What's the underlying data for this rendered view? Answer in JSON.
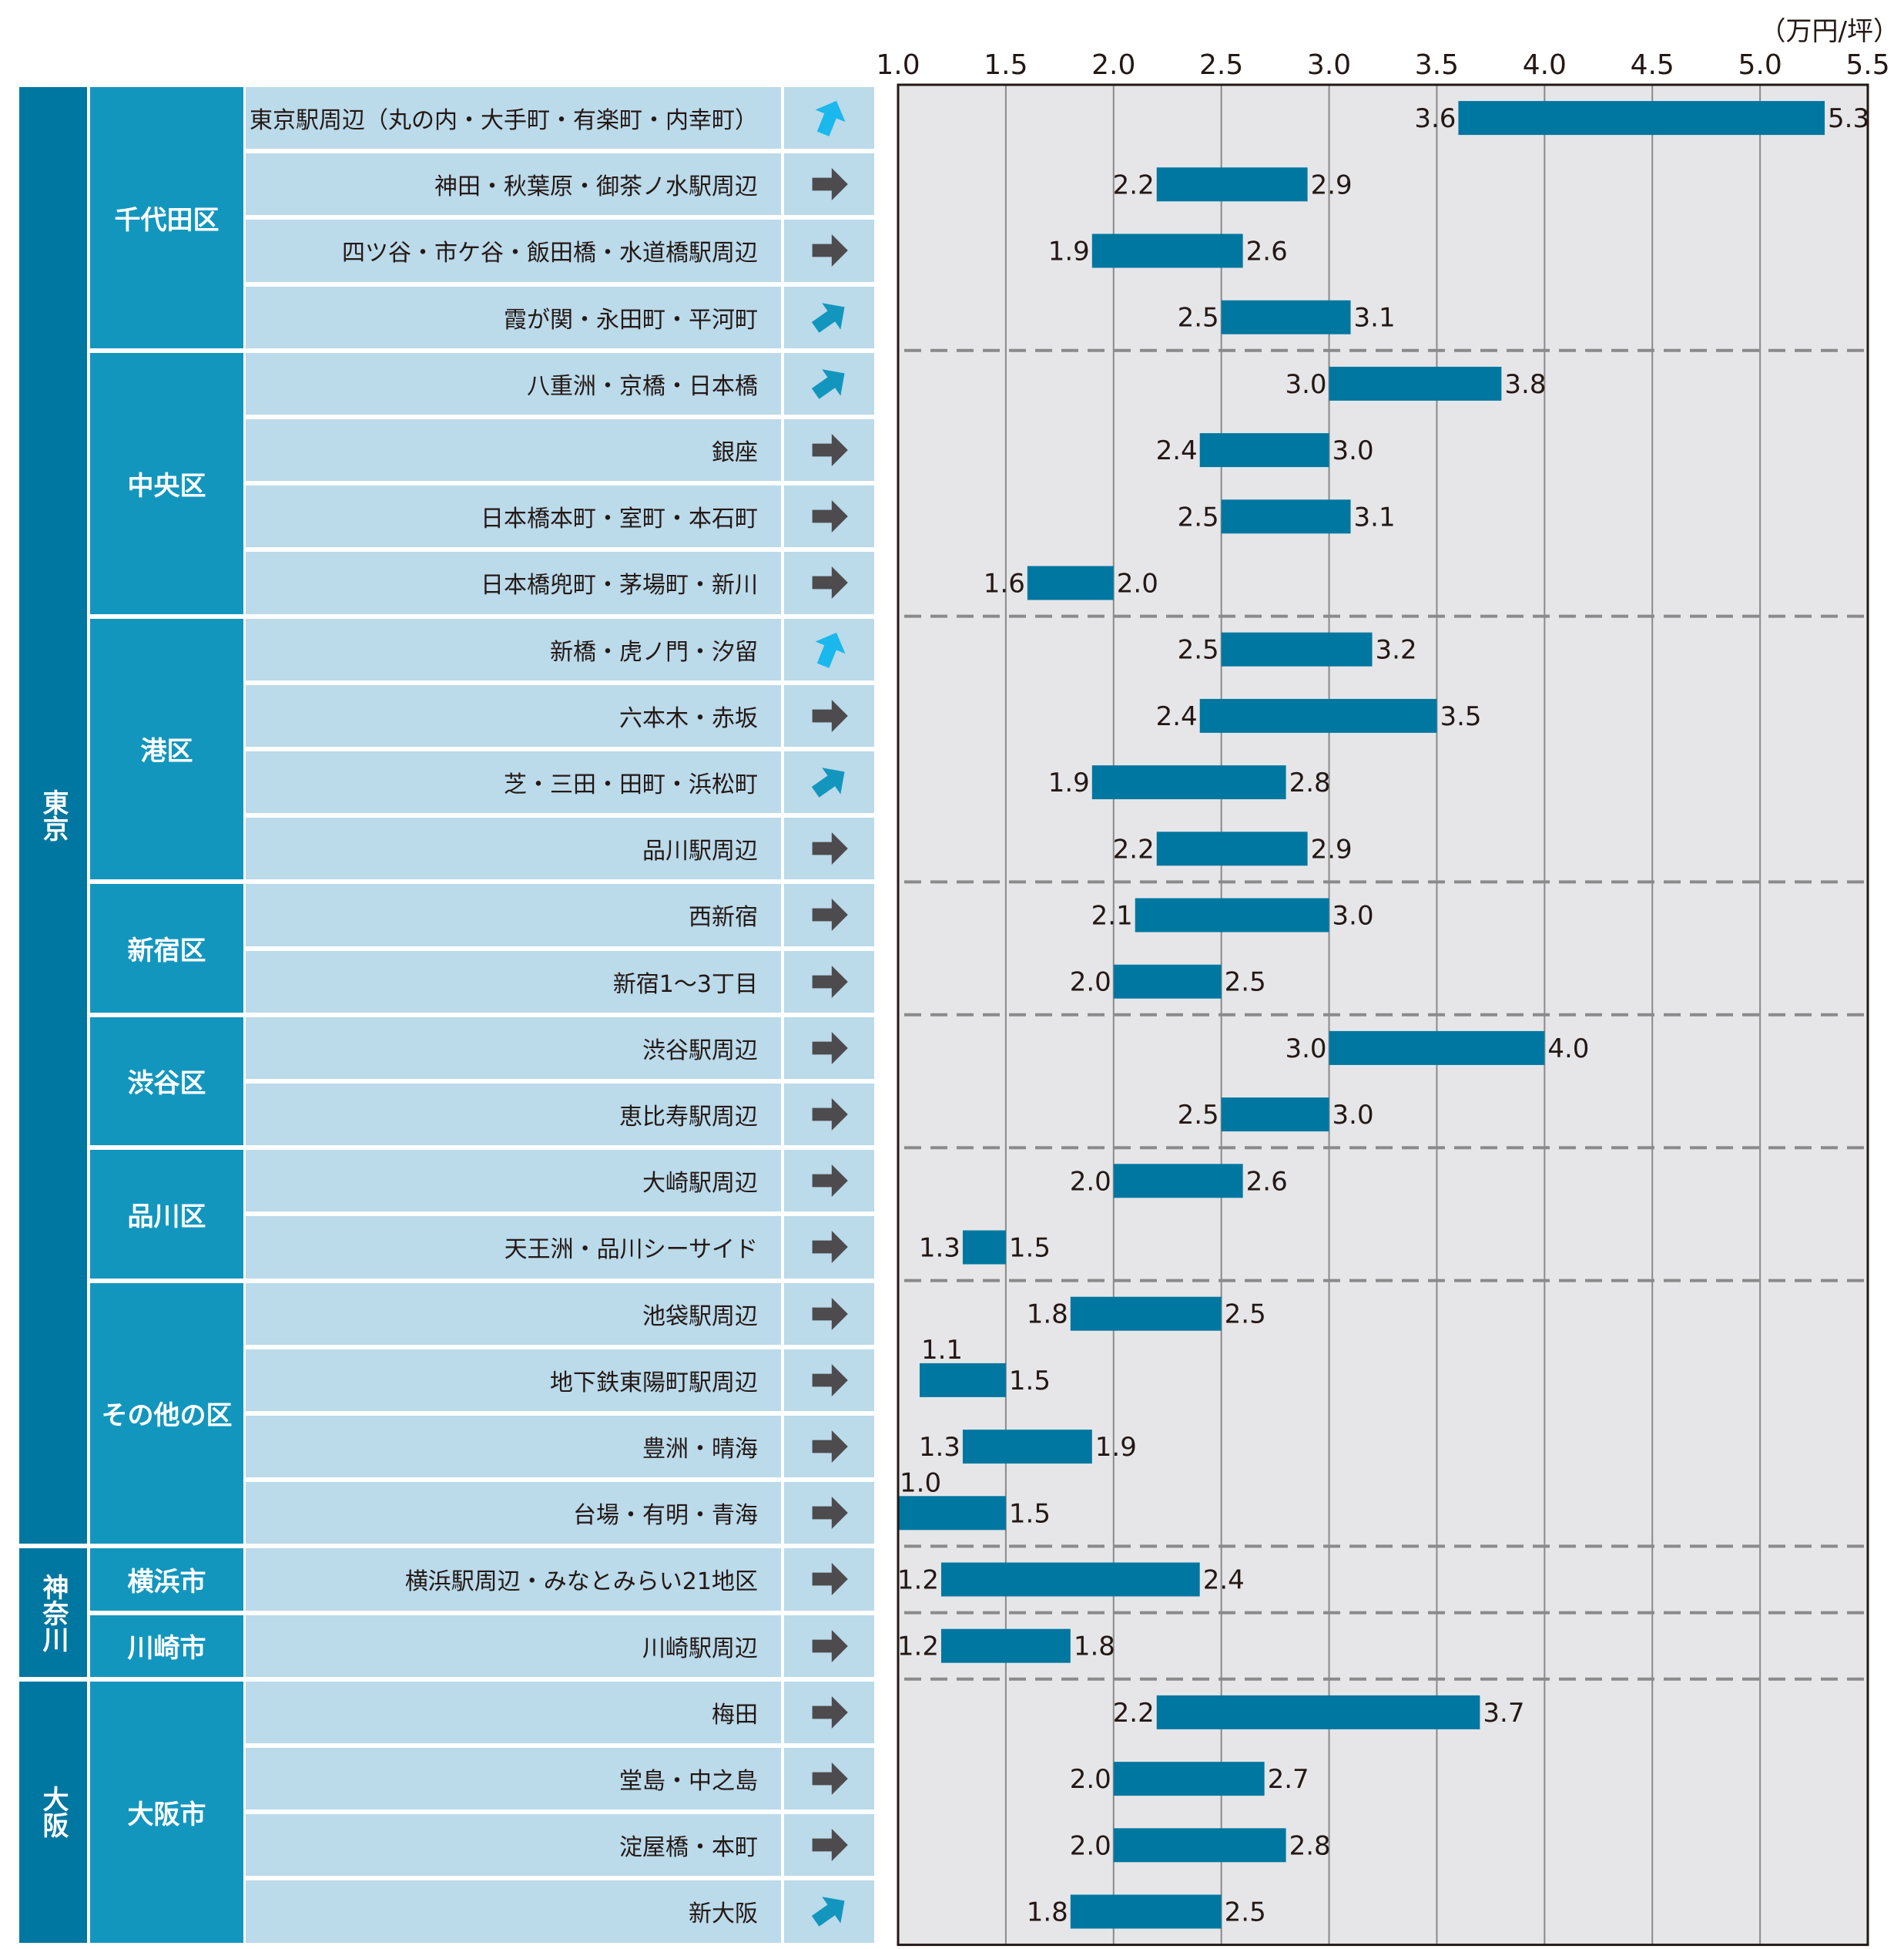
{
  "chart_data": {
    "type": "bar",
    "subtype": "floating-range-horizontal",
    "unit_label": "（万円/坪）",
    "xlim": [
      1.0,
      5.5
    ],
    "xticks": [
      "1.0",
      "1.5",
      "2.0",
      "2.5",
      "3.0",
      "3.5",
      "4.0",
      "4.5",
      "5.0",
      "5.5"
    ],
    "grid": true,
    "bar_color": "#0077a0",
    "plot_background": "#e6e6e8",
    "groups": [
      {
        "prefecture": "東京",
        "wards": [
          {
            "ward": "千代田区",
            "areas": [
              {
                "name": "東京駅周辺（丸の内・大手町・有楽町・内幸町）",
                "trend": "up",
                "low": 3.6,
                "high": 5.3
              },
              {
                "name": "神田・秋葉原・御茶ノ水駅周辺",
                "trend": "flat",
                "low": 2.2,
                "high": 2.9
              },
              {
                "name": "四ツ谷・市ケ谷・飯田橋・水道橋駅周辺",
                "trend": "flat",
                "low": 1.9,
                "high": 2.6
              },
              {
                "name": "霞が関・永田町・平河町",
                "trend": "slight-up",
                "low": 2.5,
                "high": 3.1
              }
            ]
          },
          {
            "ward": "中央区",
            "areas": [
              {
                "name": "八重洲・京橋・日本橋",
                "trend": "slight-up",
                "low": 3.0,
                "high": 3.8
              },
              {
                "name": "銀座",
                "trend": "flat",
                "low": 2.4,
                "high": 3.0
              },
              {
                "name": "日本橋本町・室町・本石町",
                "trend": "flat",
                "low": 2.5,
                "high": 3.1
              },
              {
                "name": "日本橋兜町・茅場町・新川",
                "trend": "flat",
                "low": 1.6,
                "high": 2.0
              }
            ]
          },
          {
            "ward": "港区",
            "areas": [
              {
                "name": "新橋・虎ノ門・汐留",
                "trend": "up",
                "low": 2.5,
                "high": 3.2
              },
              {
                "name": "六本木・赤坂",
                "trend": "flat",
                "low": 2.4,
                "high": 3.5
              },
              {
                "name": "芝・三田・田町・浜松町",
                "trend": "slight-up",
                "low": 1.9,
                "high": 2.8
              },
              {
                "name": "品川駅周辺",
                "trend": "flat",
                "low": 2.2,
                "high": 2.9
              }
            ]
          },
          {
            "ward": "新宿区",
            "areas": [
              {
                "name": "西新宿",
                "trend": "flat",
                "low": 2.1,
                "high": 3.0
              },
              {
                "name": "新宿1～3丁目",
                "trend": "flat",
                "low": 2.0,
                "high": 2.5
              }
            ]
          },
          {
            "ward": "渋谷区",
            "areas": [
              {
                "name": "渋谷駅周辺",
                "trend": "flat",
                "low": 3.0,
                "high": 4.0
              },
              {
                "name": "恵比寿駅周辺",
                "trend": "flat",
                "low": 2.5,
                "high": 3.0
              }
            ]
          },
          {
            "ward": "品川区",
            "areas": [
              {
                "name": "大崎駅周辺",
                "trend": "flat",
                "low": 2.0,
                "high": 2.6
              },
              {
                "name": "天王洲・品川シーサイド",
                "trend": "flat",
                "low": 1.3,
                "high": 1.5
              }
            ]
          },
          {
            "ward": "その他の区",
            "areas": [
              {
                "name": "池袋駅周辺",
                "trend": "flat",
                "low": 1.8,
                "high": 2.5
              },
              {
                "name": "地下鉄東陽町駅周辺",
                "trend": "flat",
                "low": 1.1,
                "high": 1.5,
                "low_label_above": true
              },
              {
                "name": "豊洲・晴海",
                "trend": "flat",
                "low": 1.3,
                "high": 1.9
              },
              {
                "name": "台場・有明・青海",
                "trend": "flat",
                "low": 1.0,
                "high": 1.5,
                "low_label_above": true
              }
            ]
          }
        ]
      },
      {
        "prefecture": "神奈川",
        "wards": [
          {
            "ward": "横浜市",
            "areas": [
              {
                "name": "横浜駅周辺・みなとみらい21地区",
                "trend": "flat",
                "low": 1.2,
                "high": 2.4
              }
            ]
          },
          {
            "ward": "川崎市",
            "areas": [
              {
                "name": "川崎駅周辺",
                "trend": "flat",
                "low": 1.2,
                "high": 1.8
              }
            ]
          }
        ]
      },
      {
        "prefecture": "大阪",
        "wards": [
          {
            "ward": "大阪市",
            "areas": [
              {
                "name": "梅田",
                "trend": "flat",
                "low": 2.2,
                "high": 3.7
              },
              {
                "name": "堂島・中之島",
                "trend": "flat",
                "low": 2.0,
                "high": 2.7
              },
              {
                "name": "淀屋橋・本町",
                "trend": "flat",
                "low": 2.0,
                "high": 2.8
              },
              {
                "name": "新大阪",
                "trend": "slight-up",
                "low": 1.8,
                "high": 2.5
              }
            ]
          }
        ]
      }
    ]
  },
  "trend_icons": {
    "up": {
      "icon": "arrow-up-icon",
      "color": "#1ab8ec"
    },
    "slight-up": {
      "icon": "arrow-up-right-icon",
      "color": "#1396be"
    },
    "flat": {
      "icon": "arrow-right-icon",
      "color": "#4d4b4e"
    }
  }
}
